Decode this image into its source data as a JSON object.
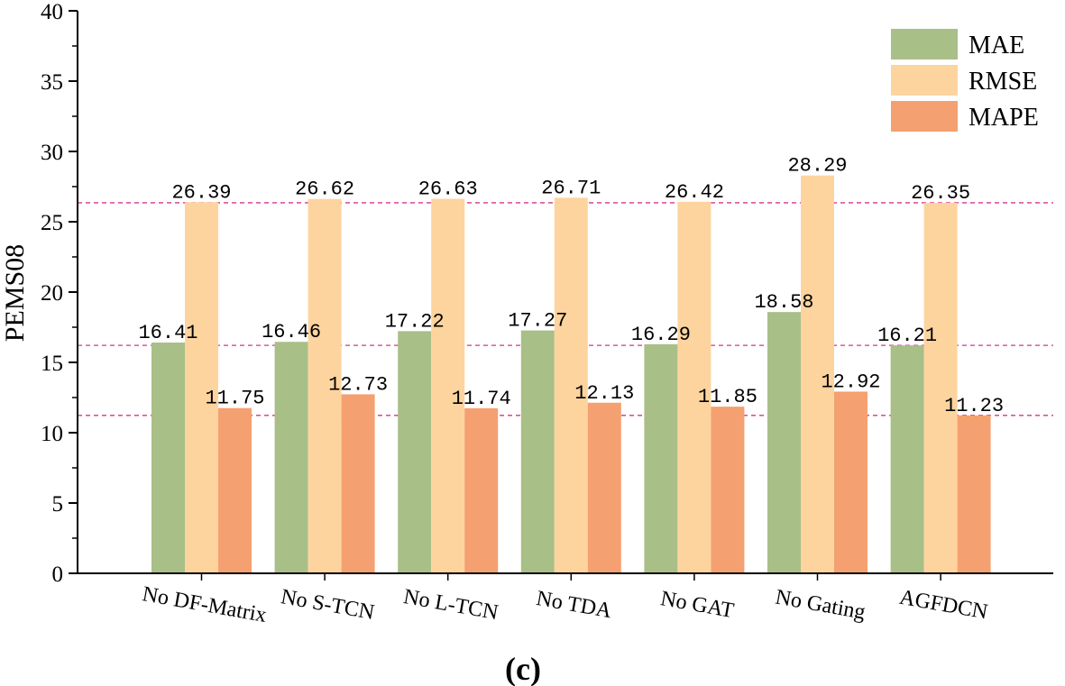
{
  "chart_data": {
    "type": "bar",
    "title": "",
    "xlabel": "",
    "ylabel": "PEMS08",
    "caption": "(c)",
    "ylim": [
      0,
      40
    ],
    "yticks": [
      0,
      5,
      10,
      15,
      20,
      25,
      30,
      35,
      40
    ],
    "ytick_labels": [
      "0",
      "5",
      "10",
      "15",
      "20",
      "25",
      "30",
      "35",
      "40"
    ],
    "categories": [
      "No DF-Matrix",
      "No S-TCN",
      "No L-TCN",
      "No TDA",
      "No GAT",
      "No Gating",
      "AGFDCN"
    ],
    "series": [
      {
        "name": "MAE",
        "color": "#a8bf88",
        "values": [
          16.41,
          16.46,
          17.22,
          17.27,
          16.29,
          18.58,
          16.21
        ],
        "labels": [
          "16.41",
          "16.46",
          "17.22",
          "17.27",
          "16.29",
          "18.58",
          "16.21"
        ]
      },
      {
        "name": "RMSE",
        "color": "#fdd49e",
        "values": [
          26.39,
          26.62,
          26.63,
          26.71,
          26.42,
          28.29,
          26.35
        ],
        "labels": [
          "26.39",
          "26.62",
          "26.63",
          "26.71",
          "26.42",
          "28.29",
          "26.35"
        ]
      },
      {
        "name": "MAPE",
        "color": "#f5a070",
        "values": [
          11.75,
          12.73,
          11.74,
          12.13,
          11.85,
          12.92,
          11.23
        ],
        "labels": [
          "11.75",
          "12.73",
          "11.74",
          "12.13",
          "11.85",
          "12.92",
          "11.23"
        ]
      }
    ],
    "reference_lines": [
      26.35,
      16.21,
      11.23
    ],
    "reference_line_color": "#d6338a",
    "legend_position": "top-right",
    "grid": false
  }
}
